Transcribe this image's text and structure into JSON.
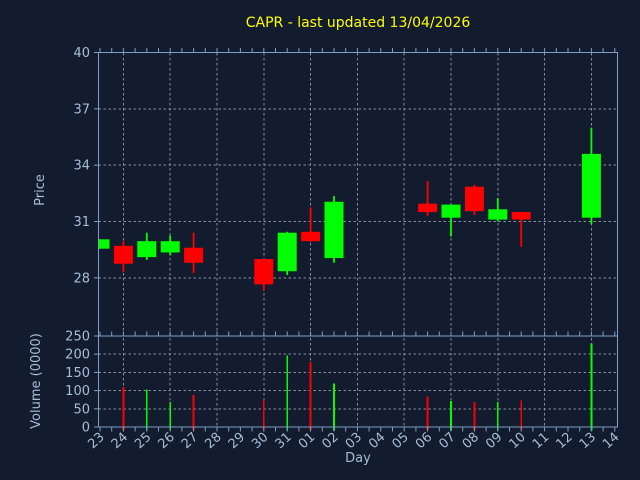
{
  "colors": {
    "background": "#131c2e",
    "spine": "#7e9ec6",
    "grid": "#949ea8",
    "tick_label": "#a6bdd9",
    "title": "#ffff00",
    "up": "#00ff00",
    "down": "#ff0000"
  },
  "chart_data": {
    "type": "candlestick",
    "title": "CAPR - last updated 13/04/2026",
    "xlabel": "Day",
    "x_categories": [
      "23",
      "24",
      "25",
      "26",
      "27",
      "28",
      "29",
      "30",
      "31",
      "01",
      "02",
      "03",
      "04",
      "05",
      "06",
      "07",
      "08",
      "09",
      "10",
      "11",
      "12",
      "13",
      "14"
    ],
    "grid": {
      "style": "dashed",
      "vertical_lines_at_days": [
        "24",
        "26",
        "28",
        "30",
        "01",
        "03",
        "05",
        "07",
        "09",
        "11",
        "13"
      ]
    },
    "price_panel": {
      "ylabel": "Price",
      "ylim": [
        24.9,
        40
      ],
      "yticks": [
        28,
        31,
        34,
        37,
        40
      ]
    },
    "volume_panel": {
      "ylabel": "Volume (0000)",
      "ylim": [
        0,
        250
      ],
      "yticks": [
        0,
        50,
        100,
        150,
        200,
        250
      ]
    },
    "up_color": "#00ff00",
    "down_color": "#ff0000",
    "series": [
      {
        "day": "23",
        "open": 29.55,
        "high": 30.05,
        "low": 29.55,
        "close": 30.05,
        "volume": null
      },
      {
        "day": "24",
        "open": 29.7,
        "high": 29.95,
        "low": 28.3,
        "close": 28.75,
        "volume": 110
      },
      {
        "day": "25",
        "open": 29.1,
        "high": 30.4,
        "low": 28.95,
        "close": 29.95,
        "volume": 103
      },
      {
        "day": "26",
        "open": 29.35,
        "high": 30.25,
        "low": 29.2,
        "close": 29.95,
        "volume": 69
      },
      {
        "day": "27",
        "open": 29.6,
        "high": 30.4,
        "low": 28.25,
        "close": 28.8,
        "volume": 88
      },
      {
        "day": "30",
        "open": 29.0,
        "high": 29.0,
        "low": 27.3,
        "close": 27.65,
        "volume": 74
      },
      {
        "day": "31",
        "open": 28.35,
        "high": 30.45,
        "low": 28.15,
        "close": 30.4,
        "volume": 197
      },
      {
        "day": "01",
        "open": 30.45,
        "high": 31.75,
        "low": 29.9,
        "close": 29.95,
        "volume": 178
      },
      {
        "day": "02",
        "open": 29.05,
        "high": 32.35,
        "low": 28.8,
        "close": 32.05,
        "volume": 120
      },
      {
        "day": "06",
        "open": 31.95,
        "high": 33.15,
        "low": 31.3,
        "close": 31.5,
        "volume": 84
      },
      {
        "day": "07",
        "open": 31.2,
        "high": 31.9,
        "low": 30.2,
        "close": 31.9,
        "volume": 71
      },
      {
        "day": "08",
        "open": 32.85,
        "high": 32.95,
        "low": 31.35,
        "close": 31.55,
        "volume": 68
      },
      {
        "day": "09",
        "open": 31.1,
        "high": 32.25,
        "low": 31.0,
        "close": 31.65,
        "volume": 68
      },
      {
        "day": "10",
        "open": 31.5,
        "high": 31.5,
        "low": 29.65,
        "close": 31.1,
        "volume": 73
      },
      {
        "day": "13",
        "open": 31.2,
        "high": 36.0,
        "low": 30.85,
        "close": 34.6,
        "volume": 230
      }
    ]
  }
}
